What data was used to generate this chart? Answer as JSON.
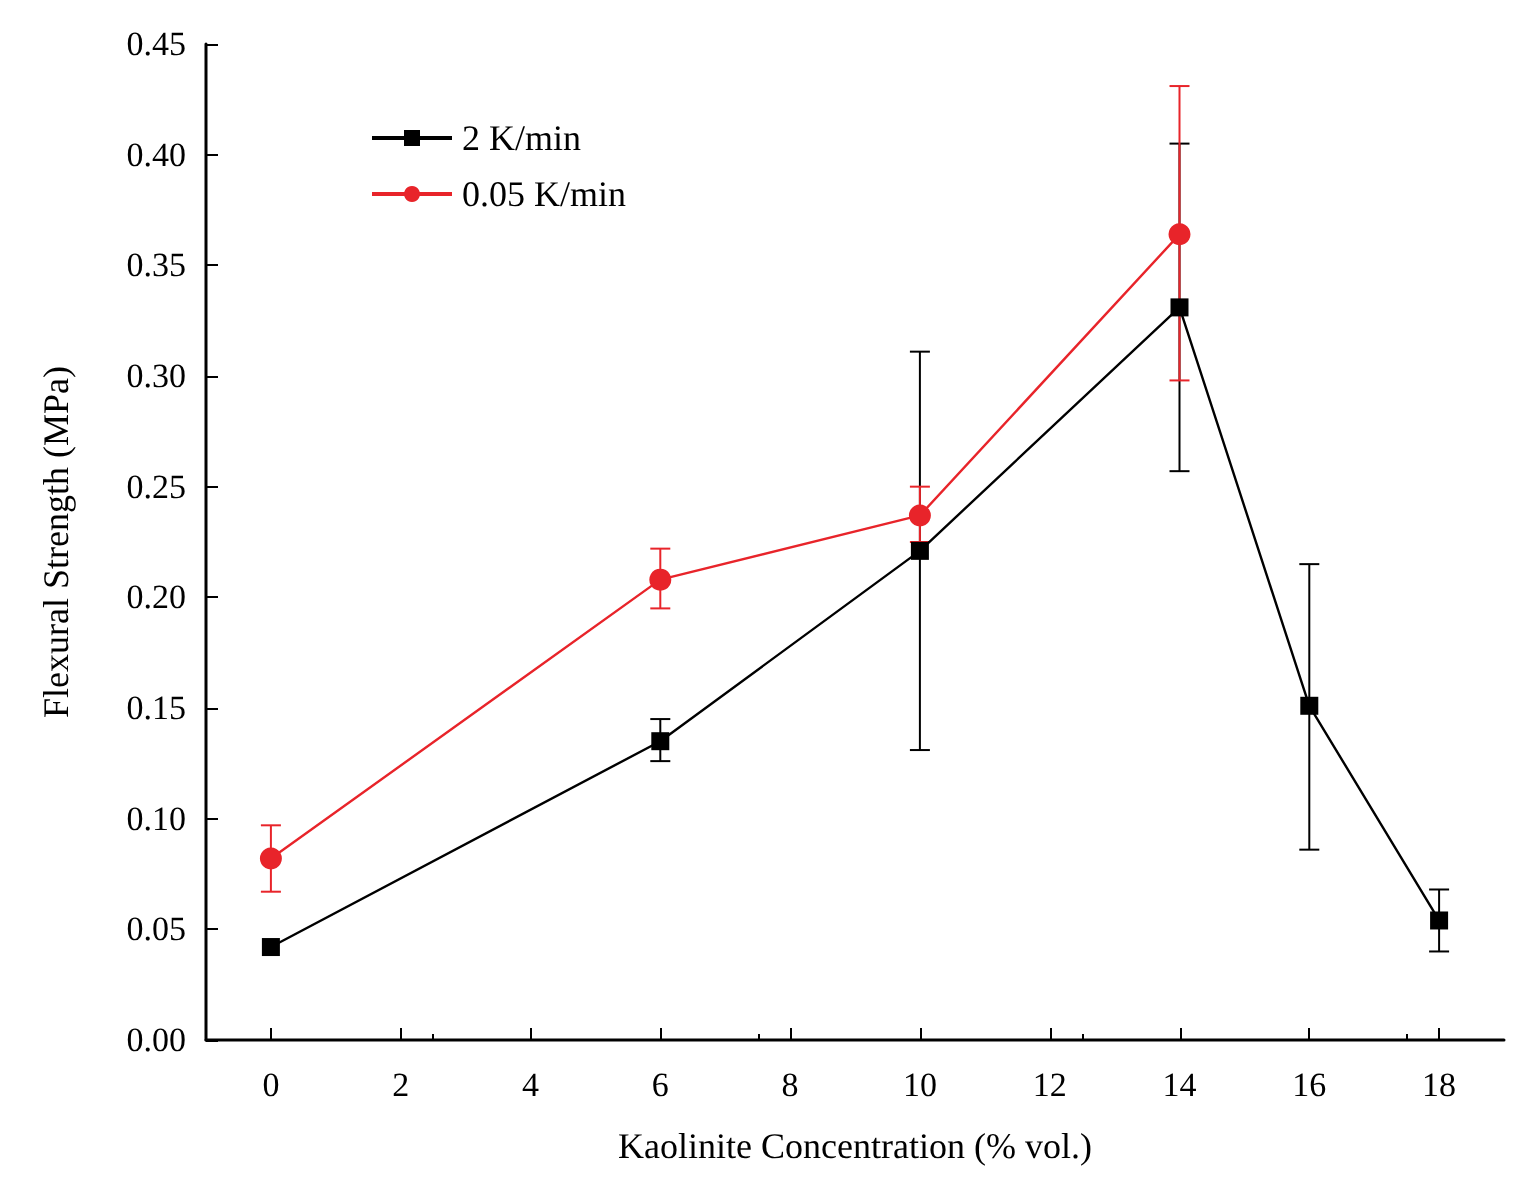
{
  "chart_data": {
    "type": "line",
    "xlabel": "Kaolinite Concentration (% vol.)",
    "ylabel": "Flexural Strength (MPa)",
    "xlim": [
      -1,
      19
    ],
    "xticks": [
      0,
      2,
      4,
      6,
      8,
      10,
      12,
      14,
      16,
      18
    ],
    "ylim": [
      0,
      0.45
    ],
    "yticks": [
      {
        "value": 0,
        "label": "0.00"
      },
      0.05,
      {
        "value": 0.1,
        "label": "0.10"
      },
      0.15,
      {
        "value": 0.2,
        "label": "0.20"
      },
      0.25,
      {
        "value": 0.3,
        "label": "0.30"
      },
      0.35,
      {
        "value": 0.4,
        "label": "0.40"
      },
      0.45
    ],
    "grid": false,
    "legend": "top left",
    "line_style": "solid",
    "series": [
      {
        "name": "2 K/min",
        "color": "#000000",
        "marker": "square",
        "x": [
          0,
          6,
          10,
          14,
          16,
          18
        ],
        "values": [
          0.042,
          0.135,
          0.221,
          0.331,
          0.151,
          0.054
        ],
        "errors": [
          null,
          [
            0.126,
            0.145
          ],
          [
            0.131,
            0.311
          ],
          [
            0.257,
            0.405
          ],
          [
            0.086,
            0.215
          ],
          [
            0.04,
            0.068
          ]
        ]
      },
      {
        "name": "0.05 K/min",
        "color": "#e8242a",
        "marker": "circle",
        "x": [
          0,
          6,
          10,
          14
        ],
        "values": [
          0.082,
          0.208,
          0.237,
          0.364
        ],
        "errors": [
          [
            0.067,
            0.097
          ],
          [
            0.195,
            0.222
          ],
          [
            0.225,
            0.25
          ],
          [
            0.298,
            0.431
          ]
        ]
      }
    ]
  }
}
